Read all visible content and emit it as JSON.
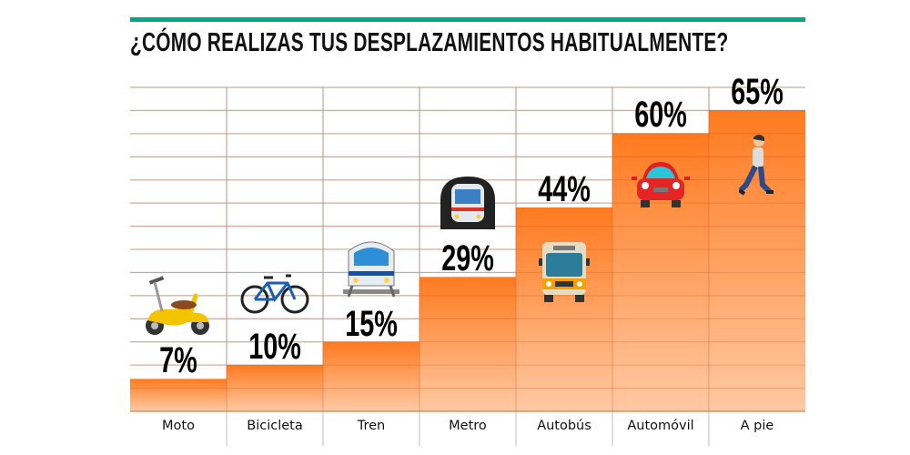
{
  "chart_data": {
    "type": "bar",
    "title": "¿CÓMO REALIZAS TUS DESPLAZAMIENTOS HABITUALMENTE?",
    "categories": [
      "Moto",
      "Bicicleta",
      "Tren",
      "Metro",
      "Autobús",
      "Automóvil",
      "A pie"
    ],
    "values": [
      7,
      10,
      15,
      29,
      44,
      60,
      65
    ],
    "value_labels": [
      "7%",
      "10%",
      "15%",
      "29%",
      "44%",
      "60%",
      "65%"
    ],
    "icons": [
      "scooter-icon",
      "bicycle-icon",
      "train-icon",
      "metro-icon",
      "bus-icon",
      "car-icon",
      "pedestrian-icon"
    ],
    "xlabel": "",
    "ylabel": "",
    "ylim": [
      0,
      70
    ],
    "grid": true,
    "unit": "%"
  },
  "colors": {
    "accent_line": "#00a886",
    "bar_top": "#ff7a1f",
    "bar_bottom": "#ffc9a3",
    "grid": "#cccccc"
  }
}
